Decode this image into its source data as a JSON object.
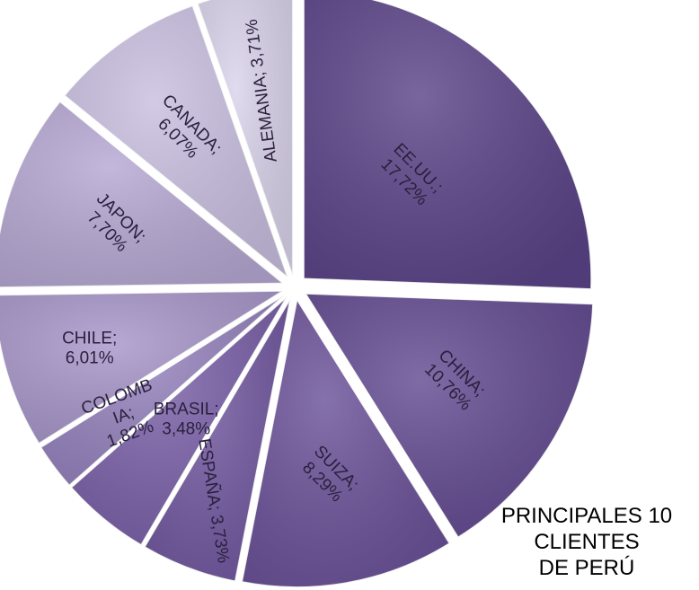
{
  "chart_data": {
    "type": "pie",
    "title": "PRINCIPALES 10 CLIENTES DE PERÚ",
    "title_lines": [
      "PRINCIPALES 10",
      "CLIENTES",
      "DE PERÚ"
    ],
    "slices": [
      {
        "name": "EE.UU.",
        "display": [
          "EE.UU.;",
          "17,72%"
        ],
        "value": 17.72,
        "color": "#5b4488"
      },
      {
        "name": "CHINA",
        "display": [
          "CHINA;",
          "10,76%"
        ],
        "value": 10.76,
        "color": "#634b91"
      },
      {
        "name": "SUIZA",
        "display": [
          "SUIZA;",
          "8,29%"
        ],
        "value": 8.29,
        "color": "#6b5299"
      },
      {
        "name": "ESPAÑA",
        "display": [
          "ESPAÑA; 3,73%"
        ],
        "value": 3.73,
        "color": "#7258a0"
      },
      {
        "name": "BRASIL",
        "display": [
          "BRASIL;",
          "3,48%"
        ],
        "value": 3.48,
        "color": "#7a60a8"
      },
      {
        "name": "COLOMBIA",
        "display": [
          "COLOMB",
          "IA;",
          "1,82%"
        ],
        "value": 1.82,
        "color": "#9582bd"
      },
      {
        "name": "CHILE",
        "display": [
          "CHILE;",
          "6,01%"
        ],
        "value": 6.01,
        "color": "#a796c9"
      },
      {
        "name": "JAPON",
        "display": [
          "JAPON;",
          "7,70%"
        ],
        "value": 7.7,
        "color": "#b6a8d3"
      },
      {
        "name": "CANADA",
        "display": [
          "CANADA;",
          "6,07%"
        ],
        "value": 6.07,
        "color": "#c9bfe0"
      },
      {
        "name": "ALEMANIA",
        "display": [
          "ALEMANIA; 3,71%"
        ],
        "value": 3.71,
        "color": "#dad3eb"
      }
    ],
    "legend": "none",
    "exploded": true
  }
}
